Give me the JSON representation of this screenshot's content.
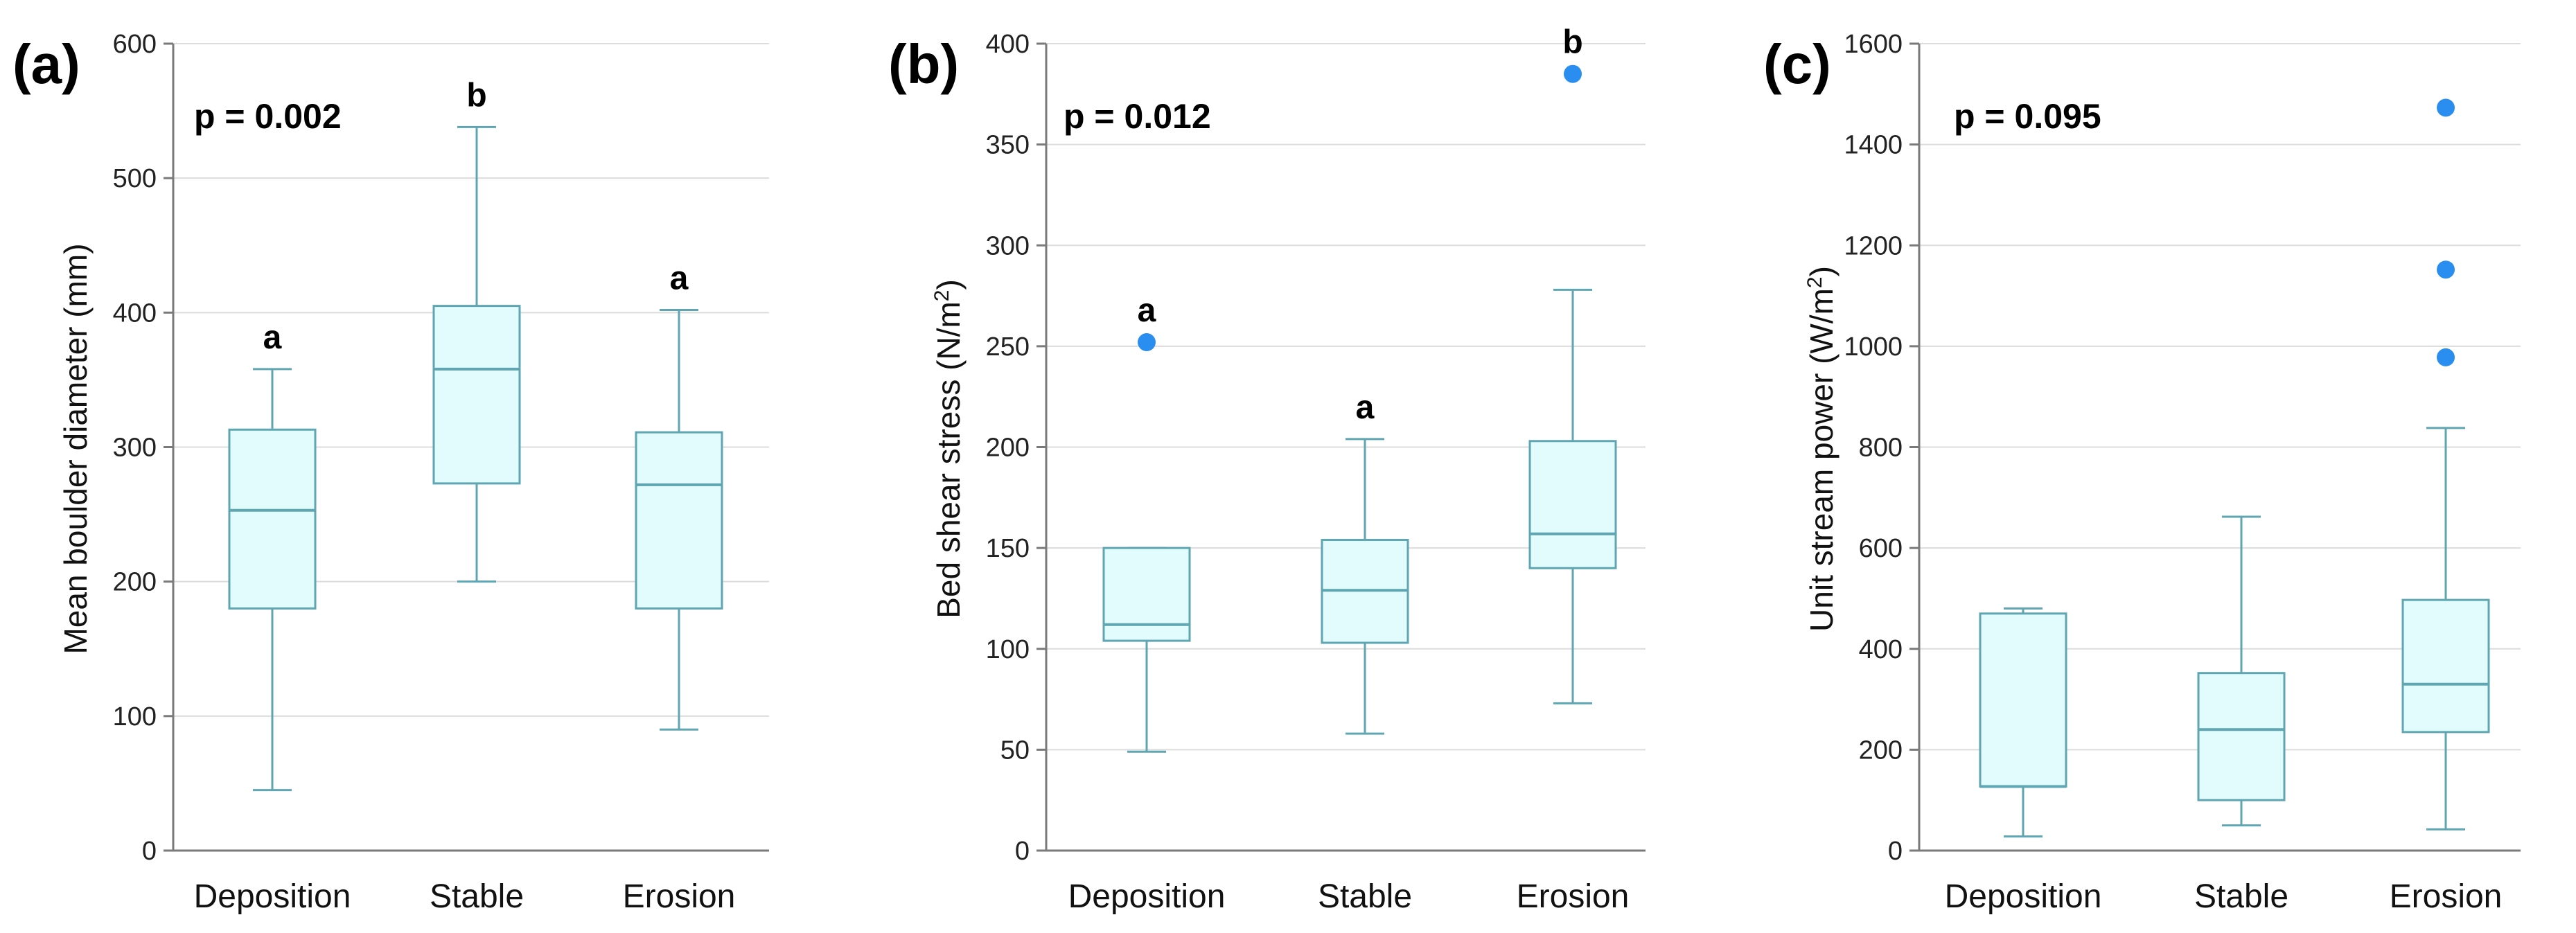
{
  "chart_data": [
    {
      "type": "box",
      "panel_label": "(a)",
      "ylabel": "Mean boulder diameter (mm)",
      "ylim": [
        0,
        600
      ],
      "yticks": [
        0,
        100,
        200,
        300,
        400,
        500,
        600
      ],
      "p_value": "p = 0.002",
      "categories": [
        "Deposition",
        "Stable",
        "Erosion"
      ],
      "boxes": [
        {
          "category": "Deposition",
          "min": 45,
          "q1": 180,
          "median": 253,
          "q3": 313,
          "max": 358,
          "outliers": [],
          "sig": "a"
        },
        {
          "category": "Stable",
          "min": 200,
          "q1": 273,
          "median": 358,
          "q3": 405,
          "max": 538,
          "outliers": [],
          "sig": "b"
        },
        {
          "category": "Erosion",
          "min": 90,
          "q1": 180,
          "median": 272,
          "q3": 311,
          "max": 402,
          "outliers": [],
          "sig": "a"
        }
      ]
    },
    {
      "type": "box",
      "panel_label": "(b)",
      "ylabel_main": "Bed shear stress (N/m",
      "ylabel_sup": "2",
      "ylabel_tail": ")",
      "ylim": [
        0,
        400
      ],
      "yticks": [
        0,
        50,
        100,
        150,
        200,
        250,
        300,
        350,
        400
      ],
      "p_value": "p = 0.012",
      "categories": [
        "Deposition",
        "Stable",
        "Erosion"
      ],
      "boxes": [
        {
          "category": "Deposition",
          "min": 49,
          "q1": 104,
          "median": 112,
          "q3": 150,
          "max": 150,
          "outliers": [
            252
          ],
          "sig": "a"
        },
        {
          "category": "Stable",
          "min": 58,
          "q1": 103,
          "median": 129,
          "q3": 154,
          "max": 204,
          "outliers": [],
          "sig": "a"
        },
        {
          "category": "Erosion",
          "min": 73,
          "q1": 140,
          "median": 157,
          "q3": 203,
          "max": 278,
          "outliers": [
            385
          ],
          "sig": "b"
        }
      ]
    },
    {
      "type": "box",
      "panel_label": "(c)",
      "ylabel_main": "Unit stream power (W/m",
      "ylabel_sup": "2",
      "ylabel_tail": ")",
      "ylim": [
        0,
        1600
      ],
      "yticks": [
        0,
        200,
        400,
        600,
        800,
        1000,
        1200,
        1400,
        1600
      ],
      "p_value": "p = 0.095",
      "categories": [
        "Deposition",
        "Stable",
        "Erosion"
      ],
      "boxes": [
        {
          "category": "Deposition",
          "min": 28,
          "q1": 127,
          "median": 127,
          "q3": 470,
          "max": 480,
          "outliers": [],
          "sig": ""
        },
        {
          "category": "Stable",
          "min": 50,
          "q1": 100,
          "median": 240,
          "q3": 352,
          "max": 662,
          "outliers": [],
          "sig": ""
        },
        {
          "category": "Erosion",
          "min": 42,
          "q1": 235,
          "median": 330,
          "q3": 497,
          "max": 838,
          "outliers": [
            978,
            1152,
            1473
          ],
          "sig": ""
        }
      ]
    }
  ]
}
